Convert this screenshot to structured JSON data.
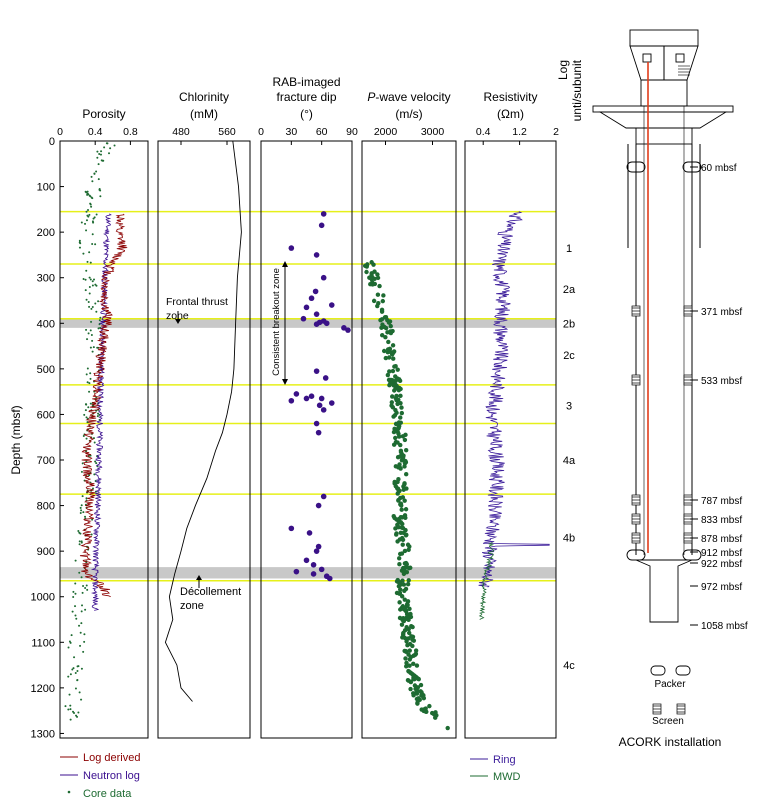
{
  "figure": {
    "depth_axis_label": "Depth (mbsf)",
    "depth_ticks": [
      0,
      100,
      200,
      300,
      400,
      500,
      600,
      700,
      800,
      900,
      1000,
      1100,
      1200,
      1300
    ],
    "depth_range": [
      0,
      1310
    ],
    "subunit_header": [
      "Log",
      "unti/subunit"
    ],
    "subunits": [
      {
        "label": "1",
        "depth": 235
      },
      {
        "label": "2a",
        "depth": 325
      },
      {
        "label": "2b",
        "depth": 400
      },
      {
        "label": "2c",
        "depth": 470
      },
      {
        "label": "3",
        "depth": 580
      },
      {
        "label": "4a",
        "depth": 700
      },
      {
        "label": "4b",
        "depth": 870
      },
      {
        "label": "4c",
        "depth": 1150
      }
    ],
    "yellow_boundaries": [
      155,
      270,
      390,
      535,
      620,
      775,
      965
    ],
    "gray_bands": [
      [
        390,
        410
      ],
      [
        935,
        960
      ]
    ],
    "colors": {
      "log_derived": "#8b0000",
      "neutron": "#3b0f8f",
      "core": "#1e6b32",
      "ring": "#3b1c9a",
      "mwd": "#1e6b32",
      "boundary": "#e6f01a",
      "band": "#c8c8c8",
      "dip": "#3a1187",
      "vp": "#1e6b32",
      "cable": "#e03c1a"
    }
  },
  "annotations": {
    "frontal_thrust": [
      "Frontal thrust",
      "zone"
    ],
    "decollement": [
      "Décollement",
      "zone"
    ],
    "breakout": "Consistent breakout zone"
  },
  "legend_left": [
    "Log derived",
    "Neutron log",
    "Core data"
  ],
  "legend_right": [
    "Ring",
    "MWD"
  ],
  "acork": {
    "title": "ACORK installation",
    "depths": [
      "60 mbsf",
      "371 mbsf",
      "533 mbsf",
      "787 mbsf",
      "833 mbsf",
      "878 mbsf",
      "912 mbsf",
      "922 mbsf",
      "972 mbsf",
      "1058 mbsf"
    ],
    "legend_packer": "Packer",
    "legend_screen": "Screen"
  },
  "chart_data": [
    {
      "type": "line",
      "title": "Porosity",
      "xlabel": "",
      "ylabel": "Depth (mbsf)",
      "xlim": [
        0,
        1
      ],
      "x_ticks": [
        "0",
        "0.4",
        "0.8"
      ],
      "x_tick_values": [
        0,
        0.4,
        0.8
      ],
      "series": [
        {
          "name": "Log derived",
          "depth": [
            160,
            200,
            230,
            270,
            300,
            350,
            390,
            420,
            500,
            560,
            620,
            700,
            780,
            850,
            900,
            950,
            980,
            1000
          ],
          "values": [
            0.7,
            0.65,
            0.72,
            0.6,
            0.52,
            0.5,
            0.55,
            0.5,
            0.45,
            0.42,
            0.35,
            0.3,
            0.35,
            0.32,
            0.28,
            0.3,
            0.5,
            0.55
          ]
        },
        {
          "name": "Neutron log",
          "depth": [
            160,
            250,
            350,
            450,
            550,
            650,
            750,
            850,
            950,
            1030
          ],
          "values": [
            0.55,
            0.52,
            0.5,
            0.48,
            0.46,
            0.45,
            0.44,
            0.42,
            0.4,
            0.4
          ]
        },
        {
          "name": "Core data",
          "depth": [
            0,
            30,
            80,
            150,
            250,
            350,
            450,
            550,
            650,
            750,
            850,
            950,
            1050,
            1150,
            1250,
            1300
          ],
          "values": [
            0.55,
            0.5,
            0.4,
            0.35,
            0.3,
            0.35,
            0.4,
            0.38,
            0.35,
            0.33,
            0.3,
            0.25,
            0.2,
            0.17,
            0.15,
            0.05
          ]
        }
      ]
    },
    {
      "type": "line",
      "title": "Chlorinity",
      "unit": "(mM)",
      "xlim": [
        440,
        600
      ],
      "x_ticks": [
        "480",
        "560"
      ],
      "x_tick_values": [
        480,
        560
      ],
      "series": [
        {
          "name": "",
          "depth": [
            0,
            100,
            200,
            300,
            400,
            500,
            550,
            600,
            640,
            680,
            740,
            800,
            850,
            900,
            950,
            1000,
            1050,
            1100,
            1150,
            1200,
            1230
          ],
          "values": [
            570,
            580,
            585,
            578,
            575,
            572,
            568,
            560,
            552,
            540,
            525,
            505,
            490,
            480,
            472,
            465,
            458,
            455,
            470,
            480,
            500
          ]
        }
      ]
    },
    {
      "type": "scatter",
      "title": "RAB-imaged",
      "title2": "fracture dip",
      "unit": "(°)",
      "xlim": [
        0,
        90
      ],
      "x_ticks": [
        "0",
        "30",
        "60",
        "90"
      ],
      "x_tick_values": [
        0,
        30,
        60,
        90
      ],
      "depth": [
        160,
        185,
        235,
        250,
        300,
        330,
        345,
        360,
        365,
        380,
        390,
        395,
        398,
        400,
        402,
        410,
        415,
        505,
        520,
        555,
        560,
        565,
        565,
        570,
        575,
        580,
        590,
        620,
        640,
        780,
        800,
        850,
        860,
        890,
        900,
        920,
        930,
        940,
        945,
        950,
        955,
        960
      ],
      "values": [
        62,
        60,
        30,
        55,
        62,
        54,
        50,
        70,
        45,
        55,
        42,
        62,
        58,
        65,
        55,
        82,
        86,
        55,
        64,
        35,
        50,
        45,
        60,
        30,
        70,
        58,
        62,
        55,
        57,
        62,
        57,
        30,
        48,
        57,
        55,
        45,
        52,
        60,
        35,
        52,
        65,
        68
      ]
    },
    {
      "type": "scatter",
      "title": "P-wave velocity",
      "unit": "(m/s)",
      "xlim": [
        1500,
        3500
      ],
      "x_ticks": [
        "2000",
        "3000"
      ],
      "x_tick_values": [
        2000,
        3000
      ],
      "depth": [
        265,
        280,
        300,
        320,
        340,
        360,
        380,
        400,
        430,
        460,
        500,
        540,
        580,
        620,
        660,
        700,
        740,
        780,
        820,
        860,
        900,
        940,
        980,
        1020,
        1060,
        1100,
        1140,
        1180,
        1220,
        1250,
        1270,
        1290
      ],
      "values": [
        1650,
        1700,
        1750,
        1800,
        1850,
        1900,
        1950,
        2000,
        2050,
        2100,
        2150,
        2200,
        2250,
        2300,
        2300,
        2350,
        2300,
        2350,
        2300,
        2350,
        2400,
        2400,
        2350,
        2400,
        2450,
        2500,
        2550,
        2600,
        2700,
        2900,
        3200,
        3300
      ]
    },
    {
      "type": "line",
      "title": "Resistivity",
      "unit": "(Ωm)",
      "xlim": [
        0,
        2
      ],
      "x_ticks": [
        "0.4",
        "1.2",
        "2"
      ],
      "x_tick_values": [
        0.4,
        1.2,
        2
      ],
      "series": [
        {
          "name": "Ring",
          "depth": [
            155,
            200,
            270,
            300,
            350,
            400,
            450,
            500,
            550,
            600,
            650,
            700,
            750,
            800,
            850,
            900,
            950,
            980
          ],
          "values": [
            1.2,
            0.9,
            0.75,
            0.8,
            0.85,
            0.8,
            0.8,
            0.75,
            0.7,
            0.6,
            0.65,
            0.7,
            0.7,
            0.65,
            0.6,
            0.55,
            0.5,
            0.45
          ]
        },
        {
          "name": "MWD",
          "depth": [
            880,
            920,
            960,
            1000,
            1050
          ],
          "values": [
            0.6,
            0.55,
            0.45,
            0.4,
            0.38
          ]
        }
      ]
    }
  ]
}
